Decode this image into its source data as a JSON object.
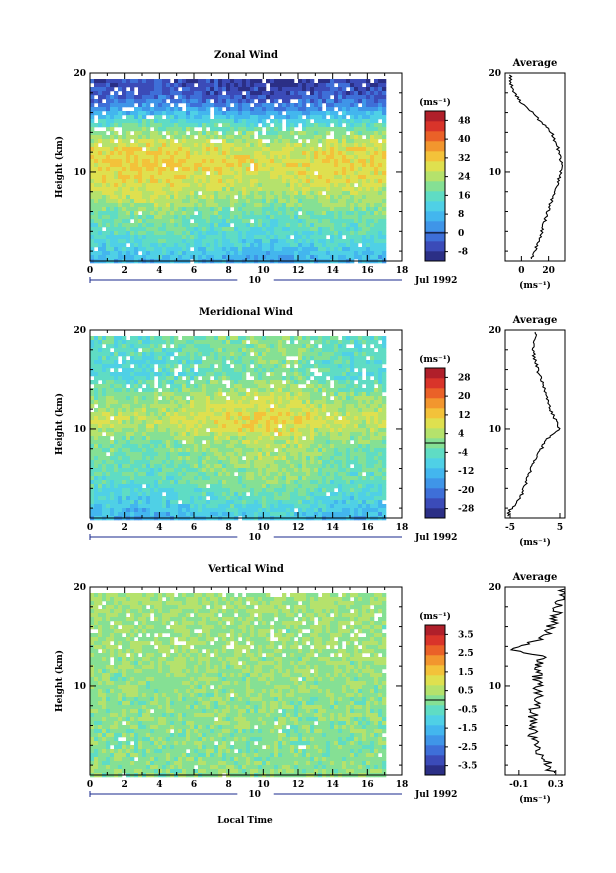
{
  "colormap": [
    "#2b2f86",
    "#3b4bb8",
    "#3e6fd8",
    "#3f95e8",
    "#43b6ee",
    "#4fd0e6",
    "#5fdcc4",
    "#85e094",
    "#b5e26c",
    "#dfe04f",
    "#f3c23a",
    "#f2962e",
    "#ea6128",
    "#d9342a",
    "#b01f2a"
  ],
  "panels": [
    {
      "id": "zonal",
      "title": "Zonal Wind",
      "ylabel": "Height (km)",
      "xlim": [
        0,
        18
      ],
      "ylim": [
        1,
        20
      ],
      "xticks": [
        0,
        2,
        4,
        6,
        8,
        10,
        12,
        14,
        16,
        18
      ],
      "yticks": [
        10,
        20
      ],
      "date_marker": "10",
      "date_label": "Jul 1992",
      "unit_label": "(ms⁻¹)",
      "colorbar_ticks": [
        -8,
        0,
        8,
        16,
        24,
        32,
        40,
        48
      ],
      "colorbar_range": [
        -12,
        52
      ],
      "data_end_hour": 16.9,
      "profile_title": "Average",
      "profile_xticks": [
        "0",
        "20"
      ],
      "profile_xlabel": "(ms⁻¹)",
      "profile": {
        "min": -12,
        "max": 32,
        "x_ticks": [
          0,
          20
        ]
      }
    },
    {
      "id": "meridional",
      "title": "Meridional Wind",
      "ylabel": "Height (km)",
      "xlim": [
        0,
        18
      ],
      "ylim": [
        1,
        20
      ],
      "xticks": [
        0,
        2,
        4,
        6,
        8,
        10,
        12,
        14,
        16,
        18
      ],
      "yticks": [
        10,
        20
      ],
      "date_marker": "10",
      "date_label": "Jul 1992",
      "unit_label": "(ms⁻¹)",
      "colorbar_ticks": [
        -28,
        -20,
        -12,
        -4,
        4,
        12,
        20,
        28
      ],
      "colorbar_range": [
        -32,
        32
      ],
      "data_end_hour": 16.9,
      "profile_title": "Average",
      "profile_xticks": [
        "-5",
        "5"
      ],
      "profile_xlabel": "(ms⁻¹)",
      "profile": {
        "min": -6,
        "max": 6,
        "x_ticks": [
          -5,
          5
        ]
      }
    },
    {
      "id": "vertical",
      "title": "Vertical Wind",
      "ylabel": "Height (km)",
      "xlim": [
        0,
        18
      ],
      "ylim": [
        1,
        20
      ],
      "xticks": [
        0,
        2,
        4,
        6,
        8,
        10,
        12,
        14,
        16,
        18
      ],
      "yticks": [
        10,
        20
      ],
      "date_marker": "10",
      "date_label": "Jul 1992",
      "unit_label": "(ms⁻¹)",
      "colorbar_ticks": [
        -3.5,
        -2.5,
        -1.5,
        -0.5,
        0.5,
        1.5,
        2.5,
        3.5
      ],
      "colorbar_range": [
        -4,
        4
      ],
      "data_end_hour": 16.9,
      "profile_title": "Average",
      "profile_xticks": [
        "-0.1",
        "0.3"
      ],
      "profile_xlabel": "(ms⁻¹)",
      "profile": {
        "min": -0.25,
        "max": 0.4,
        "x_ticks": [
          -0.1,
          0.3
        ]
      }
    }
  ],
  "xlabel": "Local Time",
  "chart_data": [
    {
      "type": "heatmap",
      "title": "Zonal Wind",
      "ylabel": "Height (km)",
      "xlim": [
        0,
        18
      ],
      "ylim": [
        1,
        20
      ],
      "colorbar": {
        "label": "(ms⁻¹)",
        "ticks": [
          -8,
          0,
          8,
          16,
          24,
          32,
          40,
          48
        ]
      },
      "height_km": [
        1,
        2,
        3,
        4,
        5,
        6,
        7,
        8,
        9,
        10,
        11,
        12,
        13,
        14,
        15,
        16,
        17,
        18,
        19
      ],
      "mean_profile_ms": [
        6,
        10,
        13,
        15,
        17,
        19,
        22,
        24,
        27,
        29,
        30,
        29,
        26,
        22,
        16,
        8,
        0,
        -4,
        -6
      ],
      "hourly_offset_ms": [
        0,
        0.5,
        1,
        1.5,
        2,
        1,
        0,
        0,
        -1,
        -1,
        -2,
        -2,
        -1,
        0,
        1,
        0,
        0
      ],
      "profile_values_ms": [
        {
          "h": 1.5,
          "v": 8
        },
        {
          "h": 3,
          "v": 13
        },
        {
          "h": 5,
          "v": 17
        },
        {
          "h": 7,
          "v": 22
        },
        {
          "h": 9,
          "v": 27
        },
        {
          "h": 10.5,
          "v": 30
        },
        {
          "h": 12,
          "v": 28
        },
        {
          "h": 14,
          "v": 22
        },
        {
          "h": 16,
          "v": 8
        },
        {
          "h": 17,
          "v": 0
        },
        {
          "h": 18,
          "v": -5
        },
        {
          "h": 19,
          "v": -8
        }
      ]
    },
    {
      "type": "heatmap",
      "title": "Meridional Wind",
      "ylabel": "Height (km)",
      "xlim": [
        0,
        18
      ],
      "ylim": [
        1,
        20
      ],
      "colorbar": {
        "label": "(ms⁻¹)",
        "ticks": [
          -28,
          -20,
          -12,
          -4,
          4,
          12,
          20,
          28
        ]
      },
      "height_km": [
        1,
        2,
        3,
        4,
        5,
        6,
        7,
        8,
        9,
        10,
        11,
        12,
        13,
        14,
        15,
        16,
        17,
        18,
        19
      ],
      "mean_profile_ms": [
        -14,
        -11,
        -8,
        -6,
        -4,
        -3,
        -2,
        -1,
        0,
        3,
        6,
        4,
        2,
        -1,
        -4,
        -6,
        -5,
        -4,
        -4
      ],
      "hourly_offset_ms": [
        0,
        0,
        -1,
        -1,
        0,
        1,
        2,
        3,
        4,
        4,
        5,
        5,
        4,
        2,
        1,
        0,
        0
      ],
      "profile_values_ms": [
        {
          "h": 1.5,
          "v": -5.5
        },
        {
          "h": 3,
          "v": -3
        },
        {
          "h": 5,
          "v": -1.5
        },
        {
          "h": 7,
          "v": 0
        },
        {
          "h": 9,
          "v": 2.5
        },
        {
          "h": 10,
          "v": 5
        },
        {
          "h": 11,
          "v": 4
        },
        {
          "h": 12,
          "v": 3
        },
        {
          "h": 14,
          "v": 2
        },
        {
          "h": 16,
          "v": 0.5
        },
        {
          "h": 18,
          "v": -0.5
        },
        {
          "h": 19.5,
          "v": 0
        }
      ]
    },
    {
      "type": "heatmap",
      "title": "Vertical Wind",
      "ylabel": "Height (km)",
      "xlim": [
        0,
        18
      ],
      "ylim": [
        1,
        20
      ],
      "colorbar": {
        "label": "(ms⁻¹)",
        "ticks": [
          -3.5,
          -2.5,
          -1.5,
          -0.5,
          0.5,
          1.5,
          2.5,
          3.5
        ]
      },
      "height_km": [
        1,
        2,
        3,
        4,
        5,
        6,
        7,
        8,
        9,
        10,
        11,
        12,
        13,
        14,
        15,
        16,
        17,
        18,
        19
      ],
      "mean_profile_ms": [
        0.1,
        0.05,
        0,
        0,
        0,
        0.05,
        0.1,
        0.1,
        0.1,
        0.15,
        0.15,
        0.2,
        0.2,
        0.25,
        0.2,
        0.2,
        0.25,
        0.3,
        0.3
      ],
      "hourly_offset_ms": [
        0,
        0,
        0,
        0,
        0,
        0,
        0,
        0,
        0,
        0,
        0,
        0,
        0,
        0,
        0,
        0,
        0
      ],
      "profile_values_ms": [
        {
          "h": 1.5,
          "v": 0.25
        },
        {
          "h": 3,
          "v": 0.15
        },
        {
          "h": 5,
          "v": 0.05
        },
        {
          "h": 7,
          "v": 0.05
        },
        {
          "h": 9,
          "v": 0.1
        },
        {
          "h": 11,
          "v": 0.1
        },
        {
          "h": 13,
          "v": 0.15
        },
        {
          "h": 13.7,
          "v": -0.15
        },
        {
          "h": 15,
          "v": 0.2
        },
        {
          "h": 17,
          "v": 0.3
        },
        {
          "h": 19,
          "v": 0.35
        }
      ]
    }
  ]
}
